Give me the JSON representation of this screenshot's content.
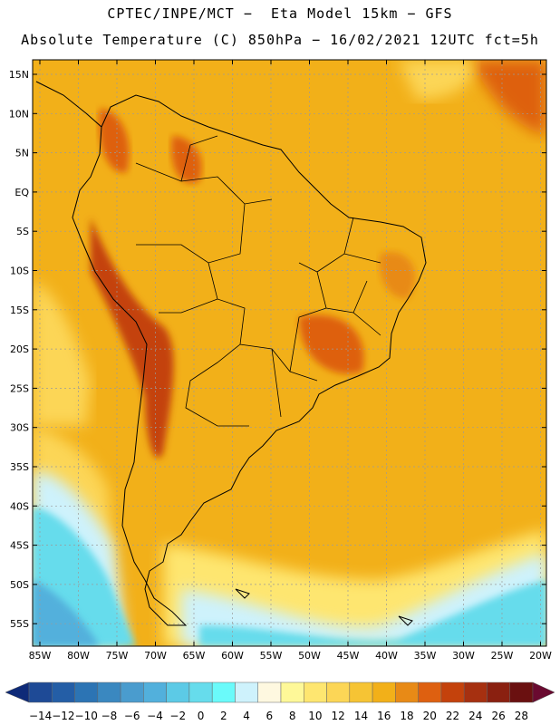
{
  "title_line1": "CPTEC/INPE/MCT −  Eta Model 15km − GFS",
  "title_line2": "Absolute Temperature (C) 850hPa − 16/02/2021 12UTC fct=5h",
  "map": {
    "lat_labels": [
      "15N",
      "10N",
      "5N",
      "EQ",
      "5S",
      "10S",
      "15S",
      "20S",
      "25S",
      "30S",
      "35S",
      "40S",
      "45S",
      "50S",
      "55S"
    ],
    "lon_labels": [
      "85W",
      "80W",
      "75W",
      "70W",
      "65W",
      "60W",
      "55W",
      "50W",
      "45W",
      "40W",
      "35W",
      "30W",
      "25W",
      "20W"
    ],
    "background_color": "#f2b019"
  },
  "colorbar": {
    "labels": [
      "−14",
      "−12",
      "−10",
      "−8",
      "−6",
      "−4",
      "−2",
      "0",
      "2",
      "4",
      "6",
      "8",
      "10",
      "12",
      "14",
      "16",
      "18",
      "20",
      "22",
      "24",
      "26",
      "28"
    ],
    "colors": [
      "#1e4a96",
      "#245ea6",
      "#2c74b4",
      "#3a88c0",
      "#4a9cce",
      "#52b0dc",
      "#5ccae6",
      "#66dcec",
      "#6afafa",
      "#cef2fc",
      "#fef8e0",
      "#fef898",
      "#fee670",
      "#fcd656",
      "#f6c434",
      "#f2b019",
      "#e88a16",
      "#de6010",
      "#c4420c",
      "#a63010",
      "#8a2010",
      "#6a1010"
    ],
    "end_low_color": "#0e2a78",
    "end_high_color": "#6a0a30"
  }
}
